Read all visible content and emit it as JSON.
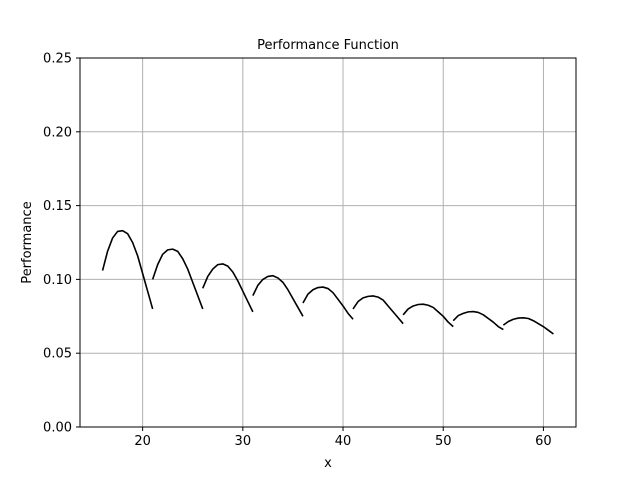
{
  "chart_data": {
    "type": "line",
    "title": "Performance Function",
    "xlabel": "x",
    "ylabel": "Performance",
    "xlim": [
      13.75,
      63.25
    ],
    "ylim": [
      0,
      0.25
    ],
    "grid": true,
    "line_color": "#000000",
    "grid_color": "#b0b0b0",
    "x_ticks": [
      20,
      30,
      40,
      50,
      60
    ],
    "x_tick_labels": [
      "20",
      "30",
      "40",
      "50",
      "60"
    ],
    "y_ticks": [
      0,
      0.05,
      0.1,
      0.15,
      0.2,
      0.25
    ],
    "y_tick_labels": [
      "0.00",
      "0.05",
      "0.10",
      "0.15",
      "0.20",
      "0.25"
    ],
    "series": [
      {
        "segments": [
          {
            "x": [
              16,
              16.5,
              17,
              17.5,
              18,
              18.5,
              19,
              19.5,
              20,
              20.5,
              21
            ],
            "y": [
              0.106,
              0.119,
              0.128,
              0.1325,
              0.133,
              0.131,
              0.125,
              0.116,
              0.104,
              0.092,
              0.08
            ]
          },
          {
            "x": [
              21,
              21.5,
              22,
              22.5,
              23,
              23.5,
              24,
              24.5,
              25,
              25.5,
              26
            ],
            "y": [
              0.1,
              0.11,
              0.117,
              0.12,
              0.1205,
              0.119,
              0.114,
              0.107,
              0.098,
              0.089,
              0.08
            ]
          },
          {
            "x": [
              26,
              26.5,
              27,
              27.5,
              28,
              28.5,
              29,
              29.5,
              30,
              30.5,
              31
            ],
            "y": [
              0.094,
              0.102,
              0.107,
              0.11,
              0.1105,
              0.109,
              0.105,
              0.099,
              0.092,
              0.085,
              0.078
            ]
          },
          {
            "x": [
              31,
              31.5,
              32,
              32.5,
              33,
              33.5,
              34,
              34.5,
              35,
              35.5,
              36
            ],
            "y": [
              0.089,
              0.096,
              0.1,
              0.102,
              0.1025,
              0.101,
              0.098,
              0.093,
              0.087,
              0.081,
              0.075
            ]
          },
          {
            "x": [
              36,
              36.5,
              37,
              37.5,
              38,
              38.5,
              39,
              39.5,
              40,
              40.5,
              41
            ],
            "y": [
              0.084,
              0.09,
              0.093,
              0.0945,
              0.0948,
              0.0938,
              0.091,
              0.0865,
              0.082,
              0.077,
              0.073
            ]
          },
          {
            "x": [
              41,
              41.5,
              42,
              42.5,
              43,
              43.5,
              44,
              44.5,
              45,
              45.5,
              46
            ],
            "y": [
              0.08,
              0.085,
              0.0875,
              0.0885,
              0.0888,
              0.088,
              0.086,
              0.082,
              0.078,
              0.074,
              0.07
            ]
          },
          {
            "x": [
              46,
              46.5,
              47,
              47.5,
              48,
              48.5,
              49,
              49.5,
              50,
              50.5,
              51
            ],
            "y": [
              0.076,
              0.08,
              0.082,
              0.083,
              0.0832,
              0.0825,
              0.081,
              0.078,
              0.075,
              0.071,
              0.068
            ]
          },
          {
            "x": [
              51,
              51.5,
              52,
              52.5,
              53,
              53.5,
              54,
              54.5,
              55,
              55.5,
              56
            ],
            "y": [
              0.072,
              0.0755,
              0.077,
              0.078,
              0.0782,
              0.0776,
              0.076,
              0.0735,
              0.071,
              0.068,
              0.066
            ]
          },
          {
            "x": [
              56,
              56.5,
              57,
              57.5,
              58,
              58.5,
              59,
              59.5,
              60,
              60.5,
              61
            ],
            "y": [
              0.069,
              0.0715,
              0.073,
              0.0738,
              0.074,
              0.0735,
              0.072,
              0.07,
              0.068,
              0.0655,
              0.063
            ]
          }
        ]
      }
    ]
  }
}
